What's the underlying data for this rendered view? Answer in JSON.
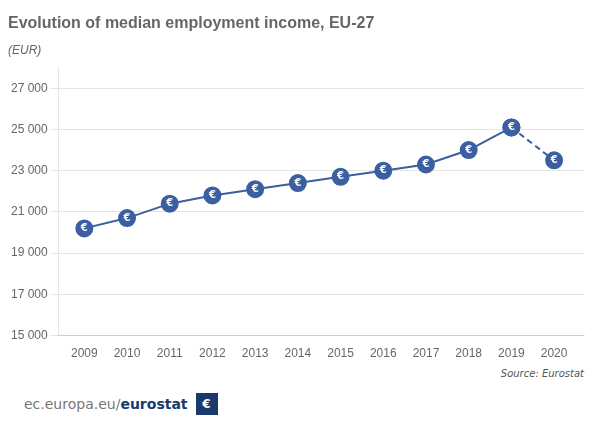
{
  "chart_data": {
    "type": "line",
    "title": "Evolution of median employment income, EU-27",
    "subtitle": "(EUR)",
    "x": [
      2009,
      2010,
      2011,
      2012,
      2013,
      2014,
      2015,
      2016,
      2017,
      2018,
      2019,
      2020
    ],
    "series": [
      {
        "color": "#3b5fa0",
        "line_style": "solid",
        "marker": "circle",
        "values": [
          20200,
          20700,
          21400,
          21800,
          22100,
          22400,
          22700,
          23000,
          23300,
          24000,
          25100,
          null
        ]
      },
      {
        "color": "#3b5fa0",
        "line_style": "dashed",
        "marker": "circle",
        "values": [
          null,
          null,
          null,
          null,
          null,
          null,
          null,
          null,
          null,
          null,
          25100,
          23500
        ]
      }
    ],
    "xlim": [
      2008.4,
      2020.7
    ],
    "xticks": [
      2009,
      2010,
      2011,
      2012,
      2013,
      2014,
      2015,
      2016,
      2017,
      2018,
      2019,
      2020
    ],
    "ylim": [
      15000,
      28000
    ],
    "yticks": [
      {
        "value": 15000,
        "label": "15 000"
      },
      {
        "value": 17000,
        "label": "17 000"
      },
      {
        "value": 19000,
        "label": "19 000"
      },
      {
        "value": 21000,
        "label": "21 000"
      },
      {
        "value": 23000,
        "label": "23 000"
      },
      {
        "value": 25000,
        "label": "25 000"
      },
      {
        "value": 27000,
        "label": "27 000"
      }
    ],
    "grid": "y",
    "legend": false,
    "annotations": [
      {
        "text": "€",
        "x": 2009,
        "y": 20200
      },
      {
        "text": "€",
        "x": 2010,
        "y": 20700
      },
      {
        "text": "€",
        "x": 2011,
        "y": 21400
      },
      {
        "text": "€",
        "x": 2012,
        "y": 21800
      },
      {
        "text": "€",
        "x": 2013,
        "y": 22100
      },
      {
        "text": "€",
        "x": 2014,
        "y": 22400
      },
      {
        "text": "€",
        "x": 2015,
        "y": 22700
      },
      {
        "text": "€",
        "x": 2016,
        "y": 23000
      },
      {
        "text": "€",
        "x": 2017,
        "y": 23300
      },
      {
        "text": "€",
        "x": 2018,
        "y": 24000
      },
      {
        "text": "€",
        "x": 2019,
        "y": 25100
      },
      {
        "text": "€",
        "x": 2020,
        "y": 23500
      }
    ],
    "source": "Source: Eurostat",
    "footer": [
      "ec.europa.eu/",
      "eurostat",
      "€"
    ]
  }
}
